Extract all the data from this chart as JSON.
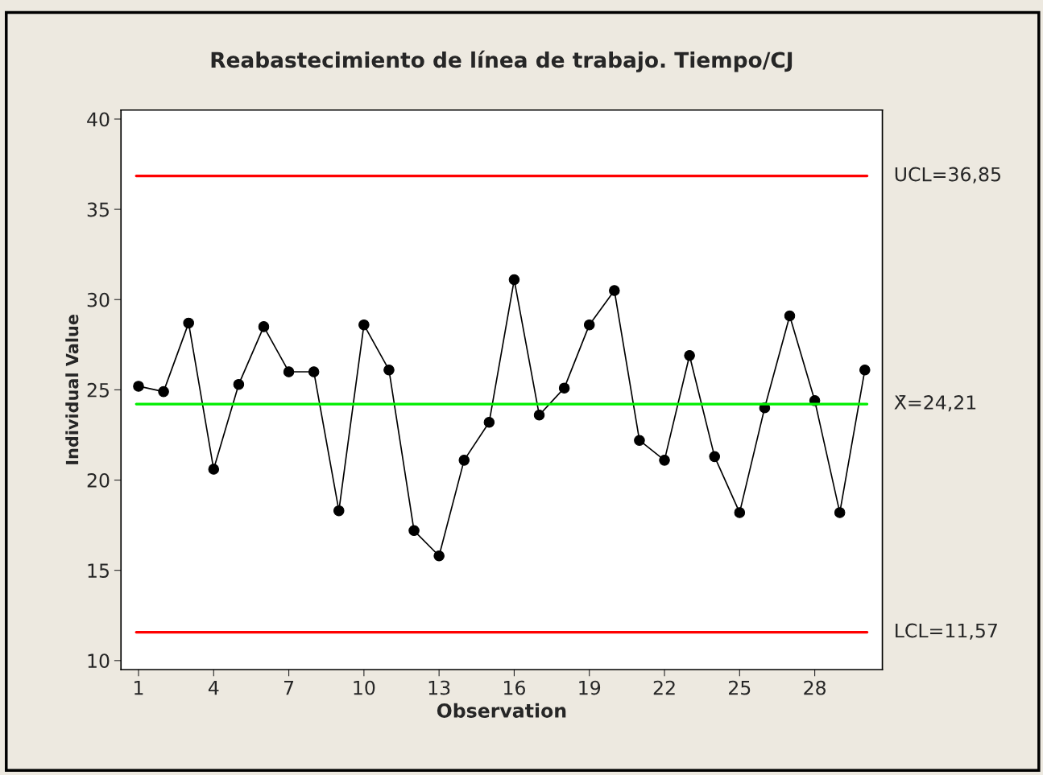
{
  "chart_data": {
    "type": "line",
    "title": "Reabastecimiento de línea de trabajo. Tiempo/CJ",
    "xlabel": "Observation",
    "ylabel": "Individual Value",
    "x": [
      1,
      2,
      3,
      4,
      5,
      6,
      7,
      8,
      9,
      10,
      11,
      12,
      13,
      14,
      15,
      16,
      17,
      18,
      19,
      20,
      21,
      22,
      23,
      24,
      25,
      26,
      27,
      28,
      29,
      30
    ],
    "series": [
      {
        "color": "#000000",
        "values": [
          25.2,
          24.9,
          28.7,
          20.6,
          25.3,
          28.5,
          26.0,
          26.0,
          18.3,
          28.6,
          26.1,
          17.2,
          15.8,
          21.1,
          23.2,
          31.1,
          23.6,
          25.1,
          28.6,
          30.5,
          22.2,
          21.1,
          26.9,
          21.3,
          18.2,
          24.0,
          29.1,
          24.4,
          18.2,
          26.1
        ]
      }
    ],
    "marker": "circle",
    "line_style": "solid",
    "grid": false,
    "legend": false,
    "xlim": [
      0.3,
      30.7
    ],
    "xticks": [
      1,
      4,
      7,
      10,
      13,
      16,
      19,
      22,
      25,
      28
    ],
    "ylim": [
      9.5,
      40.5
    ],
    "yticks": [
      10,
      15,
      20,
      25,
      30,
      35,
      40
    ],
    "ref_lines": [
      {
        "axis": "y",
        "value": 36.85,
        "label": "UCL=36,85",
        "color": "#ff0000",
        "line_style": "solid"
      },
      {
        "axis": "y",
        "value": 24.21,
        "label": "X̄=24,21",
        "color": "#00ee00",
        "line_style": "solid"
      },
      {
        "axis": "y",
        "value": 11.57,
        "label": "LCL=11,57",
        "color": "#ff0000",
        "line_style": "solid"
      }
    ]
  }
}
